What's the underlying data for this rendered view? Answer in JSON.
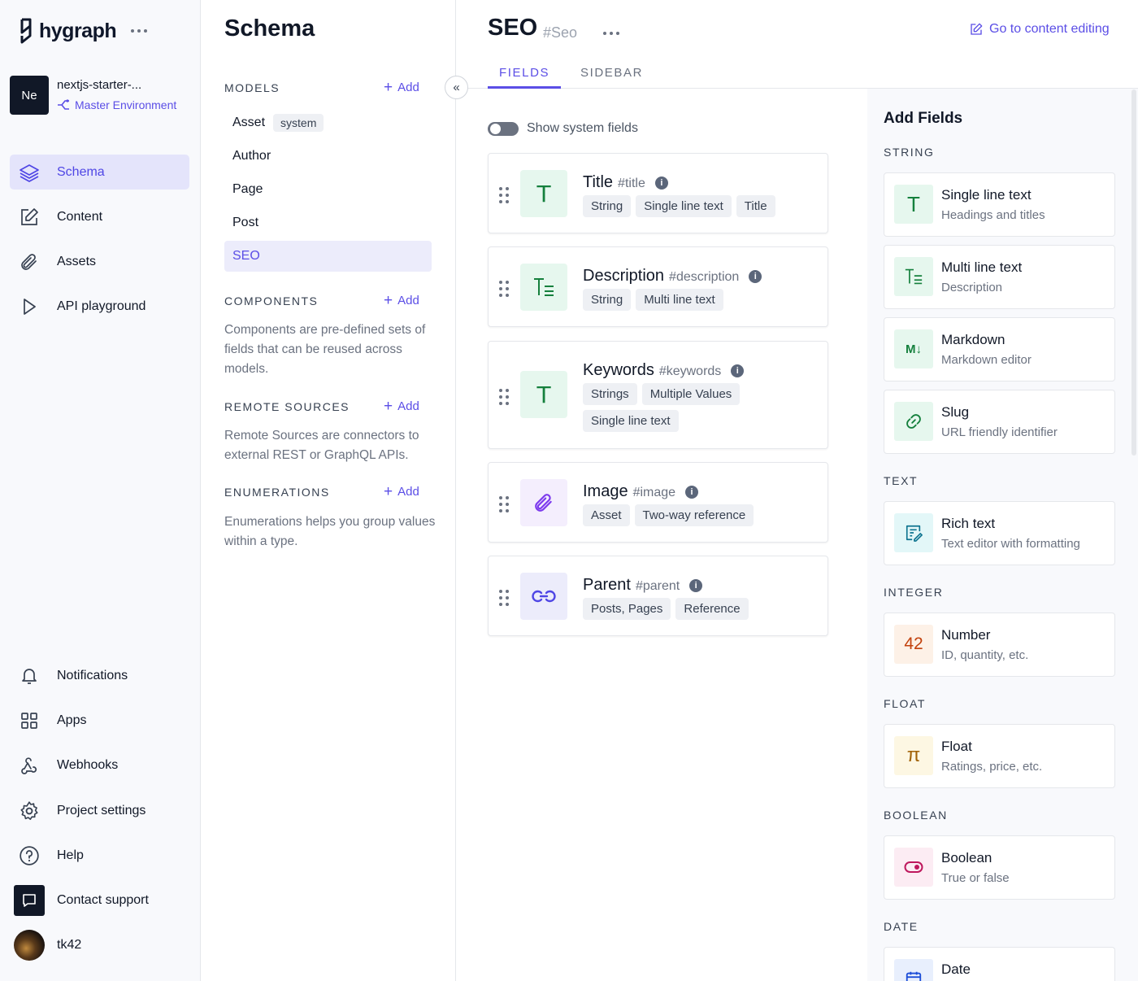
{
  "nav": {
    "logo_text": "hygraph",
    "project_initials": "Ne",
    "project_name": "nextjs-starter-...",
    "environment": "Master Environment",
    "items_top": [
      {
        "label": "Schema",
        "icon": "layers-icon"
      },
      {
        "label": "Content",
        "icon": "edit-icon"
      },
      {
        "label": "Assets",
        "icon": "paperclip-icon"
      },
      {
        "label": "API playground",
        "icon": "play-icon"
      }
    ],
    "items_bottom": [
      {
        "label": "Notifications",
        "icon": "bell-icon"
      },
      {
        "label": "Apps",
        "icon": "apps-grid-icon"
      },
      {
        "label": "Webhooks",
        "icon": "webhook-icon"
      },
      {
        "label": "Project settings",
        "icon": "gear-icon"
      },
      {
        "label": "Help",
        "icon": "help-icon"
      },
      {
        "label": "Contact support",
        "icon": "chat-icon"
      },
      {
        "label": "tk42",
        "icon": "user-avatar"
      }
    ]
  },
  "schema": {
    "title": "Schema",
    "add_label": "Add",
    "models_heading": "MODELS",
    "models": [
      {
        "label": "Asset",
        "badge": "system"
      },
      {
        "label": "Author"
      },
      {
        "label": "Page"
      },
      {
        "label": "Post"
      },
      {
        "label": "SEO",
        "active": true
      }
    ],
    "components_heading": "COMPONENTS",
    "components_desc": "Components are pre-defined sets of fields that can be reused across models.",
    "remote_heading": "REMOTE SOURCES",
    "remote_desc": "Remote Sources are connectors to external REST or GraphQL APIs.",
    "enum_heading": "ENUMERATIONS",
    "enum_desc": "Enumerations helps you group values within a type."
  },
  "main": {
    "title": "SEO",
    "api_id": "#Seo",
    "goto_label": "Go to content editing",
    "tabs": [
      "FIELDS",
      "SIDEBAR"
    ],
    "toggle_label": "Show system fields",
    "fields": [
      {
        "name": "Title",
        "api": "#title",
        "icon": "text-icon",
        "tags": [
          "String",
          "Single line text",
          "Title"
        ]
      },
      {
        "name": "Description",
        "api": "#description",
        "icon": "multiline-text-icon",
        "tags": [
          "String",
          "Multi line text"
        ]
      },
      {
        "name": "Keywords",
        "api": "#keywords",
        "icon": "text-icon",
        "tags": [
          "Strings",
          "Multiple Values",
          "Single line text"
        ]
      },
      {
        "name": "Image",
        "api": "#image",
        "icon": "paperclip-icon",
        "tags": [
          "Asset",
          "Two-way reference"
        ]
      },
      {
        "name": "Parent",
        "api": "#parent",
        "icon": "link-icon",
        "tags": [
          "Posts, Pages",
          "Reference"
        ]
      }
    ]
  },
  "add_fields": {
    "title": "Add Fields",
    "categories": {
      "string": "STRING",
      "text": "TEXT",
      "integer": "INTEGER",
      "float": "FLOAT",
      "boolean": "BOOLEAN",
      "date": "DATE"
    },
    "items": [
      {
        "name": "Single line text",
        "desc": "Headings and titles",
        "glyph": "T",
        "color": "#15803d"
      },
      {
        "name": "Multi line text",
        "desc": "Description",
        "glyph": "T=",
        "color": "#15803d"
      },
      {
        "name": "Markdown",
        "desc": "Markdown editor",
        "glyph": "M↓",
        "color": "#15803d"
      },
      {
        "name": "Slug",
        "desc": "URL friendly identifier",
        "glyph": "🔗",
        "color": "#15803d"
      },
      {
        "name": "Rich text",
        "desc": "Text editor with formatting",
        "glyph": "✎",
        "color": "#0e7490"
      },
      {
        "name": "Number",
        "desc": "ID, quantity, etc.",
        "glyph": "42",
        "color": "#c2410c"
      },
      {
        "name": "Float",
        "desc": "Ratings, price, etc.",
        "glyph": "π",
        "color": "#a16207"
      },
      {
        "name": "Boolean",
        "desc": "True or false",
        "glyph": "toggle",
        "color": "#be185d"
      },
      {
        "name": "Date",
        "desc": "",
        "glyph": "calendar",
        "color": "#1d4ed8"
      }
    ]
  }
}
